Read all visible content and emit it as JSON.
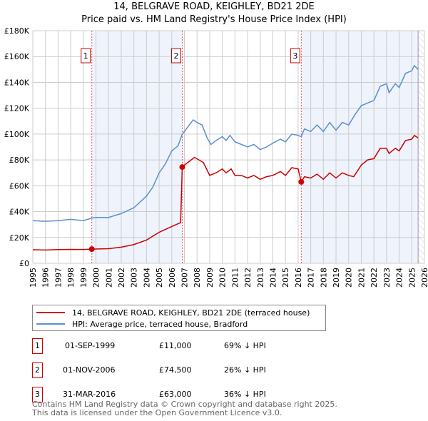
{
  "title": "14, BELGRAVE ROAD, KEIGHLEY, BD21 2DE",
  "subtitle": "Price paid vs. HM Land Registry's House Price Index (HPI)",
  "chart_data": {
    "type": "line",
    "ylim": [
      0,
      180000
    ],
    "xlim": [
      1995,
      2026
    ],
    "y_ticks": [
      "£0",
      "£20K",
      "£40K",
      "£60K",
      "£80K",
      "£100K",
      "£120K",
      "£140K",
      "£160K",
      "£180K"
    ],
    "x_ticks": [
      "1995",
      "1996",
      "1997",
      "1998",
      "1999",
      "2000",
      "2001",
      "2002",
      "2003",
      "2004",
      "2005",
      "2006",
      "2007",
      "2008",
      "2009",
      "2010",
      "2011",
      "2012",
      "2013",
      "2014",
      "2015",
      "2016",
      "2017",
      "2018",
      "2019",
      "2020",
      "2021",
      "2022",
      "2023",
      "2024",
      "2025",
      "2026"
    ],
    "shaded_ranges": [
      [
        1999.67,
        2006.83
      ],
      [
        2016.25,
        2025.5
      ]
    ],
    "hatched_from": 2025.5,
    "series": [
      {
        "name": "14, BELGRAVE ROAD, KEIGHLEY, BD21 2DE (terraced house)",
        "color": "#cc0000",
        "x": [
          1995,
          1996,
          1997,
          1998,
          1999,
          1999.67,
          2001,
          2002,
          2003,
          2004,
          2005,
          2006,
          2006.7,
          2006.83,
          2007,
          2007.8,
          2008.5,
          2009,
          2009.5,
          2010,
          2010.3,
          2010.7,
          2011,
          2011.5,
          2012,
          2012.5,
          2013,
          2013.5,
          2014,
          2014.6,
          2015,
          2015.5,
          2016,
          2016.25,
          2016.5,
          2017,
          2017.5,
          2018,
          2018.5,
          2019,
          2019.5,
          2020,
          2020.4,
          2021,
          2021.5,
          2022,
          2022.5,
          2023,
          2023.2,
          2023.7,
          2024,
          2024.5,
          2025,
          2025.2,
          2025.5
        ],
        "y": [
          10500,
          10300,
          10600,
          10800,
          10700,
          11000,
          11300,
          12500,
          14500,
          18000,
          24000,
          28500,
          31500,
          74500,
          76000,
          82000,
          78000,
          68000,
          70000,
          73000,
          70000,
          73000,
          68000,
          68000,
          66000,
          68000,
          65000,
          67000,
          68000,
          71000,
          68000,
          74000,
          73000,
          63000,
          67000,
          66000,
          69000,
          65000,
          70000,
          66000,
          70000,
          68000,
          67000,
          76000,
          80000,
          81000,
          89000,
          89000,
          85000,
          89000,
          87000,
          95000,
          96000,
          99000,
          97000
        ]
      },
      {
        "name": "HPI: Average price, terraced house, Bradford",
        "color": "#5b8fd0",
        "x": [
          1995,
          1996,
          1997,
          1998,
          1999,
          1999.67,
          2000,
          2001,
          2002,
          2003,
          2004,
          2004.5,
          2005,
          2005.5,
          2006,
          2006.5,
          2006.83,
          2007,
          2007.3,
          2007.7,
          2008,
          2008.4,
          2008.8,
          2009.1,
          2009.5,
          2010,
          2010.3,
          2010.6,
          2011,
          2011.5,
          2012,
          2012.5,
          2013,
          2013.5,
          2014,
          2014.6,
          2015,
          2015.5,
          2016,
          2016.25,
          2016.5,
          2017,
          2017.5,
          2018,
          2018.5,
          2019,
          2019.5,
          2020,
          2020.5,
          2021,
          2021.5,
          2022,
          2022.5,
          2023,
          2023.2,
          2023.7,
          2024,
          2024.5,
          2025,
          2025.2,
          2025.5
        ],
        "y": [
          33000,
          32500,
          33000,
          34000,
          33000,
          35000,
          35500,
          35500,
          38500,
          43000,
          52000,
          59000,
          70000,
          77000,
          87000,
          91000,
          100000,
          102000,
          106000,
          111000,
          109000,
          107000,
          97000,
          92000,
          95000,
          98000,
          95000,
          99000,
          94000,
          92000,
          90000,
          92000,
          88000,
          90000,
          93000,
          96000,
          94000,
          100000,
          99000,
          98000,
          104000,
          102000,
          107000,
          102000,
          109000,
          103000,
          109000,
          107000,
          115000,
          122000,
          124000,
          126000,
          137000,
          139000,
          132000,
          139000,
          136000,
          147000,
          149000,
          153000,
          150000
        ]
      }
    ],
    "sales": [
      {
        "label": "1",
        "x": 1999.67,
        "y": 11000
      },
      {
        "label": "2",
        "x": 2006.83,
        "y": 74500
      },
      {
        "label": "3",
        "x": 2016.25,
        "y": 63000
      }
    ]
  },
  "legend": {
    "red": "14, BELGRAVE ROAD, KEIGHLEY, BD21 2DE (terraced house)",
    "blue": "HPI: Average price, terraced house, Bradford"
  },
  "transactions": [
    {
      "num": "1",
      "date": "01-SEP-1999",
      "price": "£11,000",
      "hpi": "69% ↓ HPI"
    },
    {
      "num": "2",
      "date": "01-NOV-2006",
      "price": "£74,500",
      "hpi": "26% ↓ HPI"
    },
    {
      "num": "3",
      "date": "31-MAR-2016",
      "price": "£63,000",
      "hpi": "36% ↓ HPI"
    }
  ],
  "footer": {
    "line1": "Contains HM Land Registry data © Crown copyright and database right 2025.",
    "line2": "This data is licensed under the Open Government Licence v3.0."
  }
}
